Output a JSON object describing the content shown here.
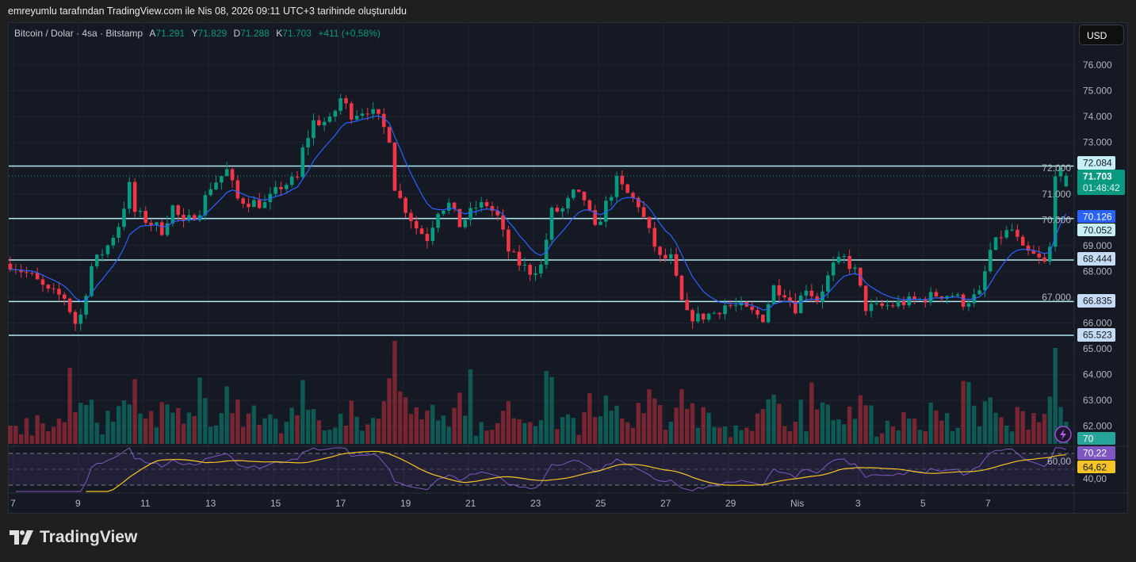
{
  "attribution": "emreyumlu tarafından TradingView.com ile Nis 08, 2026 09:11 UTC+3 tarihinde oluşturuldu",
  "legend": {
    "symbol": "Bitcoin / Dolar · 4sa · Bitstamp",
    "open_label": "A",
    "open": "71.291",
    "high_label": "Y",
    "high": "71.829",
    "low_label": "D",
    "low": "71.288",
    "close_label": "K",
    "close": "71.703",
    "change": "+411 (+0,58%)"
  },
  "currency_button": "USD",
  "brand": "TradingView",
  "colors": {
    "up": "#089981",
    "down": "#f23645",
    "ema": "#2962ff",
    "rsi": "#7e57c2",
    "rsi_ma": "#f7c325",
    "levels": "#b2ebf2"
  },
  "chart_data": {
    "type": "candlestick",
    "title": "Bitcoin / Dolar · 4sa · Bitstamp",
    "ylim": [
      61500,
      77000
    ],
    "y_ticks": [
      "76.000",
      "75.000",
      "74.000",
      "73.000",
      "72.000",
      "71.000",
      "70.000",
      "69.000",
      "68.000",
      "67.000",
      "66.000",
      "65.000",
      "64.000",
      "63.000",
      "62.000"
    ],
    "x_ticks": [
      "7",
      "9",
      "11",
      "13",
      "15",
      "17",
      "19",
      "21",
      "23",
      "25",
      "27",
      "29",
      "Nis",
      "3",
      "5",
      "7"
    ],
    "close_path_anchors": [
      [
        0,
        68.3
      ],
      [
        4,
        67.8
      ],
      [
        7,
        67.2
      ],
      [
        10,
        67.0
      ],
      [
        12,
        66.0
      ],
      [
        13,
        66.3
      ],
      [
        15,
        68.2
      ],
      [
        18,
        69.0
      ],
      [
        20,
        69.8
      ],
      [
        22,
        71.3
      ],
      [
        23,
        70.3
      ],
      [
        25,
        70.0
      ],
      [
        28,
        69.6
      ],
      [
        30,
        70.5
      ],
      [
        32,
        69.8
      ],
      [
        35,
        70.4
      ],
      [
        37,
        71.3
      ],
      [
        40,
        71.9
      ],
      [
        42,
        70.8
      ],
      [
        44,
        70.7
      ],
      [
        47,
        70.6
      ],
      [
        50,
        71.3
      ],
      [
        53,
        71.6
      ],
      [
        54,
        72.7
      ],
      [
        56,
        73.8
      ],
      [
        59,
        73.8
      ],
      [
        61,
        74.7
      ],
      [
        63,
        74.1
      ],
      [
        66,
        74.3
      ],
      [
        68,
        73.9
      ],
      [
        70,
        73.2
      ],
      [
        71,
        71.3
      ],
      [
        72,
        70.8
      ],
      [
        75,
        69.7
      ],
      [
        77,
        69.3
      ],
      [
        79,
        70.4
      ],
      [
        81,
        70.6
      ],
      [
        83,
        69.8
      ],
      [
        86,
        70.5
      ],
      [
        88,
        70.6
      ],
      [
        90,
        70.1
      ],
      [
        92,
        68.8
      ],
      [
        94,
        68.3
      ],
      [
        96,
        68.0
      ],
      [
        98,
        68.2
      ],
      [
        100,
        70.3
      ],
      [
        102,
        70.4
      ],
      [
        104,
        71.0
      ],
      [
        106,
        70.8
      ],
      [
        108,
        69.6
      ],
      [
        110,
        70.6
      ],
      [
        112,
        71.5
      ],
      [
        114,
        71.0
      ],
      [
        116,
        70.6
      ],
      [
        118,
        69.5
      ],
      [
        120,
        68.5
      ],
      [
        122,
        68.5
      ],
      [
        124,
        66.8
      ],
      [
        125,
        66.3
      ],
      [
        127,
        66.2
      ],
      [
        130,
        66.4
      ],
      [
        132,
        66.7
      ],
      [
        135,
        66.6
      ],
      [
        137,
        66.4
      ],
      [
        139,
        66.2
      ],
      [
        141,
        67.4
      ],
      [
        143,
        67.2
      ],
      [
        145,
        66.6
      ],
      [
        147,
        67.4
      ],
      [
        149,
        66.9
      ],
      [
        152,
        68.2
      ],
      [
        154,
        68.5
      ],
      [
        156,
        68.0
      ],
      [
        157,
        67.3
      ],
      [
        158,
        66.6
      ],
      [
        160,
        66.6
      ],
      [
        163,
        66.7
      ],
      [
        165,
        66.8
      ],
      [
        168,
        66.9
      ],
      [
        171,
        67.1
      ],
      [
        174,
        67.1
      ],
      [
        176,
        66.8
      ],
      [
        179,
        67.1
      ],
      [
        181,
        68.8
      ],
      [
        183,
        69.4
      ],
      [
        185,
        69.6
      ],
      [
        187,
        68.8
      ],
      [
        189,
        68.6
      ],
      [
        191,
        68.3
      ],
      [
        192,
        68.9
      ],
      [
        193,
        71.9
      ],
      [
        195,
        71.703
      ]
    ],
    "price_unit": "thousand USD",
    "horizontal_levels": [
      {
        "label": "72.084",
        "value": 72.084
      },
      {
        "label": "70.052",
        "value": 70.052
      },
      {
        "label": "68.444",
        "value": 68.444
      },
      {
        "label": "66.835",
        "value": 66.835
      },
      {
        "label": "65.523",
        "value": 65.523
      }
    ],
    "last_price": {
      "label": "71.703",
      "value": 71.703,
      "countdown": "01:48:42"
    },
    "ema": {
      "label": "70.126",
      "value": 70.126
    },
    "volume": {
      "label": "70"
    },
    "rsi": {
      "value_label": "70,22",
      "ma_label": "64,62",
      "ticks": [
        "60,00",
        "40,00"
      ],
      "upper": 70,
      "lower": 30
    }
  }
}
